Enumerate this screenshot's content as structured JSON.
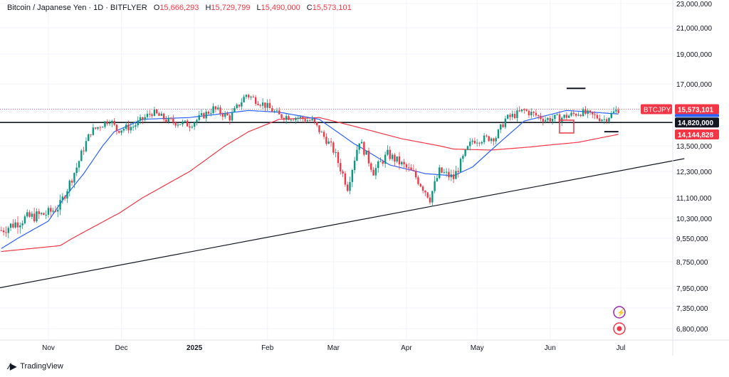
{
  "header": {
    "symbol": "Bitcoin / Japanese Yen · 1D · BITFLYER",
    "o_label": "O",
    "o_value": "15,666,293",
    "h_label": "H",
    "h_value": "15,729,799",
    "l_label": "L",
    "l_value": "15,490,000",
    "c_label": "C",
    "c_value": "15,573,101"
  },
  "brand": {
    "label": "TradingView"
  },
  "colors": {
    "up": "#089981",
    "down": "#f23645",
    "ma_fast": "#2962ff",
    "ma_slow": "#f23645",
    "line": "#131722"
  },
  "chart_data": {
    "type": "candlestick",
    "symbol_tag": "BTCJPY",
    "last_price": "15,573,101",
    "horizontal_level": "14,820,000",
    "slow_ma_value": "14,144,828",
    "y_ticks": [
      "23,000,000",
      "21,000,000",
      "19,000,000",
      "17,000,000",
      "13,500,000",
      "12,300,000",
      "11,100,000",
      "10,300,000",
      "9,550,000",
      "8,750,000",
      "7,950,000",
      "7,350,000",
      "6,800,000"
    ],
    "y_tick_values": [
      23000000,
      21000000,
      19000000,
      17000000,
      13500000,
      12300000,
      11100000,
      10300000,
      9550000,
      8750000,
      7950000,
      7350000,
      6800000
    ],
    "x_ticks": [
      "Nov",
      "Dec",
      "2025",
      "Feb",
      "Mar",
      "Apr",
      "May",
      "Jun",
      "Jul"
    ],
    "x_tick_days": [
      20,
      51,
      82,
      113,
      141,
      172,
      202,
      233,
      263
    ],
    "close_anchors": [
      [
        0,
        9.85
      ],
      [
        10,
        10.3
      ],
      [
        20,
        10.5
      ],
      [
        25,
        10.8
      ],
      [
        32,
        12.5
      ],
      [
        38,
        14.3
      ],
      [
        46,
        15.0
      ],
      [
        49,
        14.4
      ],
      [
        56,
        14.6
      ],
      [
        64,
        15.4
      ],
      [
        71,
        14.9
      ],
      [
        80,
        14.7
      ],
      [
        90,
        15.6
      ],
      [
        97,
        15.1
      ],
      [
        104,
        16.4
      ],
      [
        112,
        15.8
      ],
      [
        118,
        15.2
      ],
      [
        126,
        15.1
      ],
      [
        132,
        14.9
      ],
      [
        141,
        13.3
      ],
      [
        147,
        11.6
      ],
      [
        152,
        13.8
      ],
      [
        158,
        12.3
      ],
      [
        164,
        13.1
      ],
      [
        168,
        12.8
      ],
      [
        175,
        12.2
      ],
      [
        182,
        11.1
      ],
      [
        186,
        12.3
      ],
      [
        192,
        12.0
      ],
      [
        200,
        13.8
      ],
      [
        210,
        14.0
      ],
      [
        214,
        15.0
      ],
      [
        222,
        15.5
      ],
      [
        231,
        15.0
      ],
      [
        238,
        15.1
      ],
      [
        246,
        15.4
      ],
      [
        256,
        15.0
      ],
      [
        262,
        15.57
      ]
    ],
    "ma_fast_anchors": [
      [
        0,
        9.2
      ],
      [
        20,
        10.2
      ],
      [
        35,
        12.2
      ],
      [
        48,
        14.3
      ],
      [
        60,
        15.0
      ],
      [
        80,
        15.1
      ],
      [
        105,
        15.5
      ],
      [
        118,
        15.4
      ],
      [
        135,
        15.0
      ],
      [
        150,
        13.6
      ],
      [
        165,
        12.6
      ],
      [
        180,
        12.2
      ],
      [
        192,
        12.1
      ],
      [
        200,
        12.5
      ],
      [
        210,
        13.5
      ],
      [
        222,
        14.9
      ],
      [
        240,
        15.5
      ],
      [
        262,
        15.3
      ]
    ],
    "ma_slow_anchors": [
      [
        0,
        9.1
      ],
      [
        25,
        9.3
      ],
      [
        50,
        10.5
      ],
      [
        80,
        12.3
      ],
      [
        105,
        14.3
      ],
      [
        118,
        15.0
      ],
      [
        135,
        15.1
      ],
      [
        150,
        14.6
      ],
      [
        170,
        13.9
      ],
      [
        192,
        13.35
      ],
      [
        208,
        13.3
      ],
      [
        225,
        13.45
      ],
      [
        245,
        13.7
      ],
      [
        262,
        14.15
      ]
    ],
    "trendline": [
      [
        -20,
        7.7
      ],
      [
        290,
        12.9
      ]
    ],
    "resistance_marks": [
      [
        240,
        16.75
      ],
      [
        248,
        16.75
      ]
    ],
    "support_marks": [
      [
        256,
        14.3
      ],
      [
        262,
        14.3
      ]
    ]
  }
}
